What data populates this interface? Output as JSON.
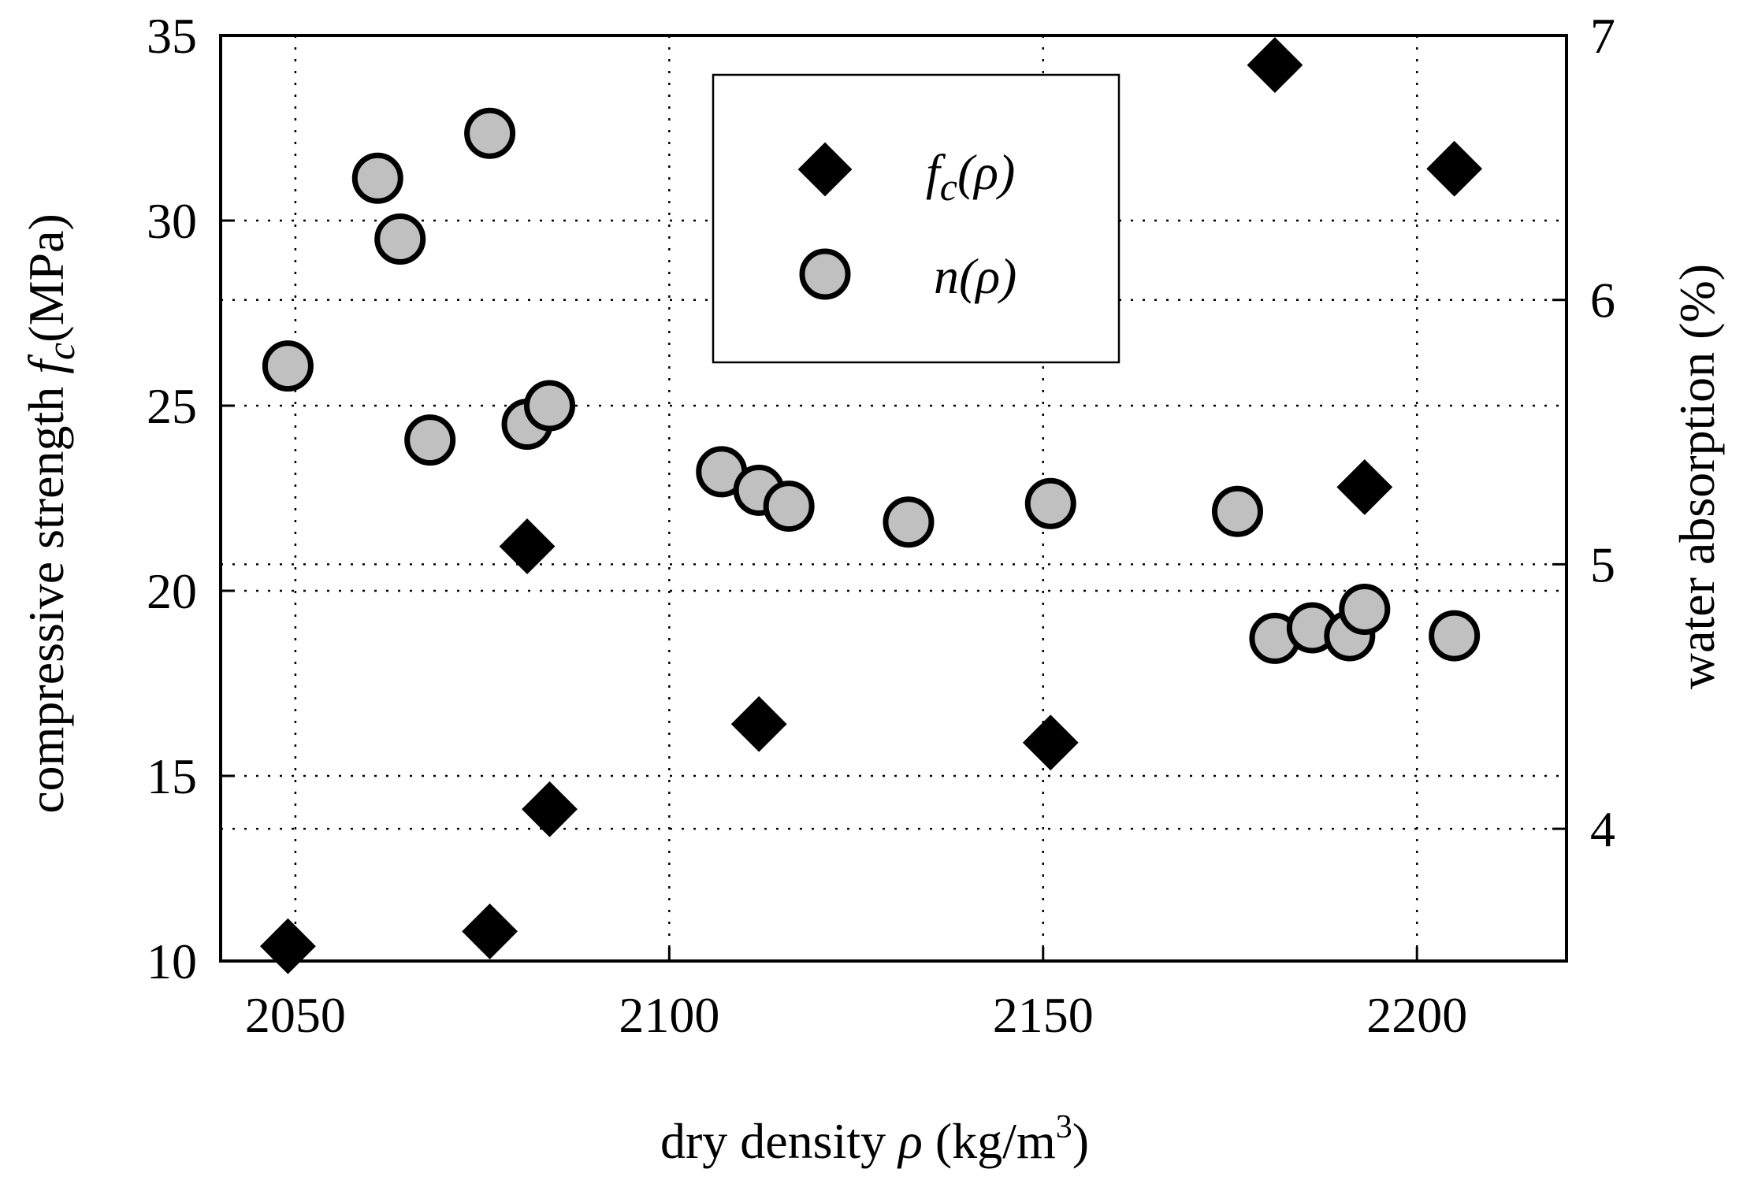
{
  "chart_data": {
    "type": "scatter",
    "x": {
      "label": "dry density ρ (kg/m³)",
      "label_text": "dry density ",
      "label_symbol": "ρ",
      "label_unit": " (kg/m",
      "label_sup": "3",
      "label_close": ")",
      "range": [
        2040,
        2220
      ],
      "ticks": [
        "2050",
        "2100",
        "2150",
        "2200"
      ],
      "tick_values": [
        2050,
        2100,
        2150,
        2200
      ]
    },
    "y_left": {
      "label": "compressive strength fc(MPa)",
      "label_text": "compressive strength ",
      "label_symbol": "f",
      "label_sub": "c",
      "label_unit": "(MPa)",
      "range": [
        10,
        35
      ],
      "ticks": [
        "10",
        "15",
        "20",
        "25",
        "30",
        "35"
      ],
      "tick_values": [
        10,
        15,
        20,
        25,
        30,
        35
      ]
    },
    "y_right": {
      "label": "water absorption (%)",
      "range": [
        3.5,
        7
      ],
      "ticks": [
        "4",
        "5",
        "6",
        "7"
      ],
      "tick_values": [
        4,
        5,
        6,
        7
      ]
    },
    "grid": "dotted",
    "legend": {
      "position": "top-center",
      "entries": [
        {
          "series": "fc",
          "symbol": "f",
          "sub": "c",
          "arg": "(ρ)"
        },
        {
          "series": "n",
          "symbol": "n",
          "sub": "",
          "arg": "(ρ)"
        }
      ]
    },
    "series": [
      {
        "name": "fc(ρ)",
        "axis": "left",
        "marker": "diamond",
        "color": "#000000",
        "points": [
          [
            2049,
            10.4
          ],
          [
            2076,
            10.8
          ],
          [
            2081,
            21.2
          ],
          [
            2084,
            14.1
          ],
          [
            2112,
            16.4
          ],
          [
            2151,
            15.9
          ],
          [
            2181,
            34.2
          ],
          [
            2193,
            22.8
          ],
          [
            2205,
            31.4
          ]
        ]
      },
      {
        "name": "n(ρ)",
        "axis": "right",
        "marker": "circle",
        "color": "#c0c0c0",
        "points": [
          [
            2049,
            5.75
          ],
          [
            2061,
            6.46
          ],
          [
            2064,
            6.23
          ],
          [
            2068,
            5.47
          ],
          [
            2076,
            6.63
          ],
          [
            2081,
            5.53
          ],
          [
            2084,
            5.6
          ],
          [
            2107,
            5.35
          ],
          [
            2112,
            5.28
          ],
          [
            2116,
            5.22
          ],
          [
            2132,
            5.16
          ],
          [
            2151,
            5.23
          ],
          [
            2176,
            5.2
          ],
          [
            2181,
            4.72
          ],
          [
            2186,
            4.76
          ],
          [
            2191,
            4.73
          ],
          [
            2193,
            4.83
          ],
          [
            2205,
            4.73
          ]
        ]
      }
    ]
  }
}
